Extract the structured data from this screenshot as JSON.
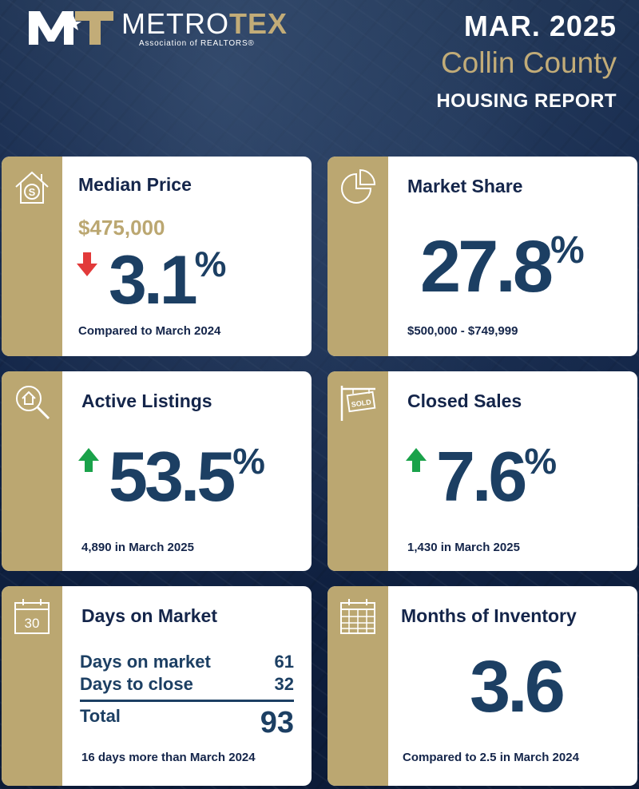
{
  "header": {
    "logo_metro": "METRO",
    "logo_tex": "TEX",
    "logo_sub": "Association of REALTORS®",
    "date": "MAR. 2025",
    "county": "Collin County",
    "report": "HOUSING REPORT"
  },
  "colors": {
    "navy": "#14254a",
    "value_blue": "#1c3f63",
    "gold": "#bba771",
    "up_green": "#1aa24a",
    "down_red": "#e23a3a"
  },
  "cards": {
    "median_price": {
      "title": "Median Price",
      "price": "$475,000",
      "change": "3.1",
      "pct": "%",
      "direction": "down",
      "note": "Compared to March 2024",
      "icon": "house-dollar-icon"
    },
    "market_share": {
      "title": "Market Share",
      "value": "27.8",
      "pct": "%",
      "note": "$500,000 - $749,999",
      "icon": "pie-chart-icon"
    },
    "active_listings": {
      "title": "Active Listings",
      "change": "53.5",
      "pct": "%",
      "direction": "up",
      "note": "4,890 in March 2025",
      "icon": "house-search-icon"
    },
    "closed_sales": {
      "title": "Closed Sales",
      "change": "7.6",
      "pct": "%",
      "direction": "up",
      "note": "1,430 in March 2025",
      "icon": "sold-sign-icon"
    },
    "days_on_market": {
      "title": "Days on Market",
      "calendar_day": "30",
      "rows": [
        {
          "label": "Days on market",
          "value": "61"
        },
        {
          "label": "Days to close",
          "value": "32"
        }
      ],
      "total_label": "Total",
      "total_value": "93",
      "note": "16 days more than March 2024",
      "icon": "calendar-icon"
    },
    "months_inventory": {
      "title": "Months of Inventory",
      "value": "3.6",
      "note": "Compared to 2.5 in March 2024",
      "icon": "calendar-grid-icon"
    }
  }
}
